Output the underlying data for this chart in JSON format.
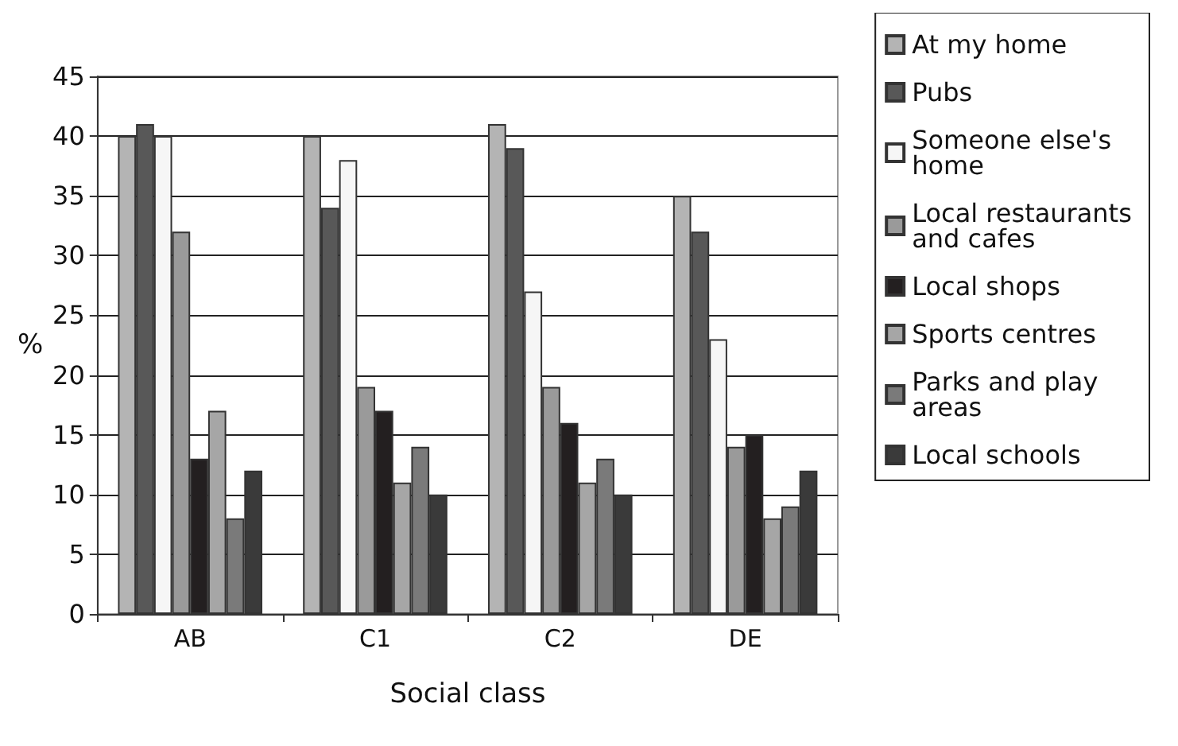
{
  "chart_data": {
    "type": "bar",
    "xlabel": "Social class",
    "ylabel": "%",
    "categories": [
      "AB",
      "C1",
      "C2",
      "DE"
    ],
    "series": [
      {
        "name": "At my home",
        "color": "#b4b4b4",
        "values": [
          40,
          40,
          41,
          35
        ]
      },
      {
        "name": "Pubs",
        "color": "#585858",
        "values": [
          41,
          34,
          39,
          32
        ]
      },
      {
        "name": "Someone else's home",
        "color": "#f6f6f6",
        "values": [
          40,
          38,
          27,
          23
        ]
      },
      {
        "name": "Local restaurants and cafes",
        "color": "#9a9a9a",
        "values": [
          32,
          19,
          19,
          14
        ]
      },
      {
        "name": "Local shops",
        "color": "#231f20",
        "values": [
          13,
          17,
          16,
          15
        ]
      },
      {
        "name": "Sports centres",
        "color": "#a6a6a6",
        "values": [
          17,
          11,
          11,
          8
        ]
      },
      {
        "name": "Parks and play areas",
        "color": "#7a7a7a",
        "values": [
          8,
          14,
          13,
          9
        ]
      },
      {
        "name": "Local schools",
        "color": "#3a3a3a",
        "values": [
          12,
          10,
          10,
          12
        ]
      }
    ],
    "ylim": [
      0,
      45
    ],
    "yticks": [
      0,
      5,
      10,
      15,
      20,
      25,
      30,
      35,
      40,
      45
    ],
    "grid": "y",
    "legend": "right"
  }
}
